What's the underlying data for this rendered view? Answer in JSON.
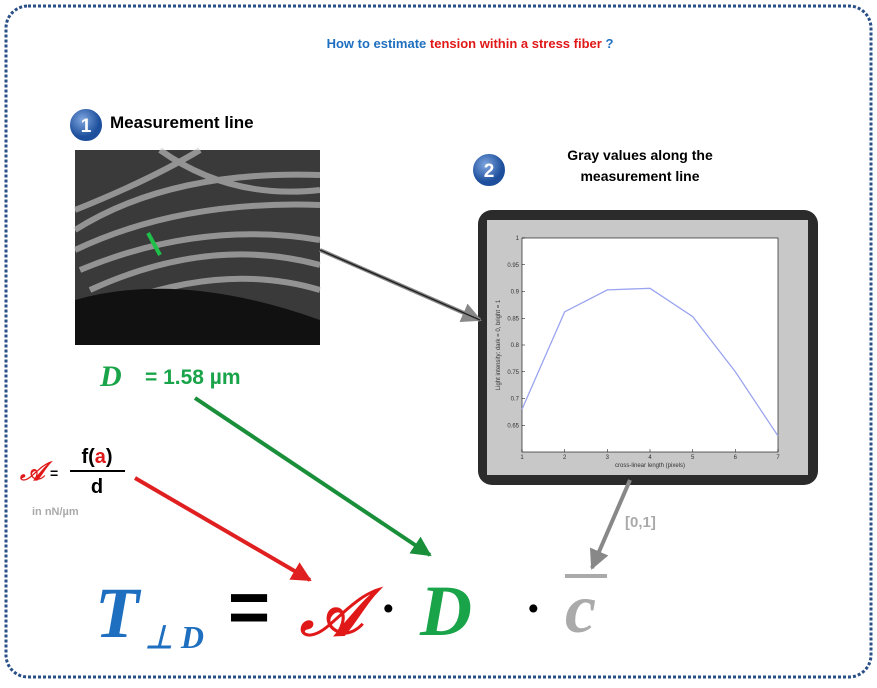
{
  "title": {
    "part1": "How to estimate",
    "part2": "tension within a stress fiber",
    "part3": "?"
  },
  "step1": {
    "number": "1",
    "label": "Measurement line"
  },
  "step2": {
    "number": "2",
    "label_line1": "Gray values along the",
    "label_line2": "measurement line"
  },
  "diameter": {
    "symbol": "D",
    "value": "= 1.58 µm"
  },
  "stiffness": {
    "symbol": "𝒜",
    "equals": "=",
    "num_open": "f(",
    "num_var": "a",
    "num_close": ")",
    "denominator": "d",
    "unit": "in nN/µm"
  },
  "range_label": "[0,1]",
  "formula": {
    "T": "T",
    "sub": "⊥ D",
    "equals": "=",
    "A": "𝒜",
    "dot1": "·",
    "D": "D",
    "dot2": "·",
    "C": "c"
  },
  "plot": {
    "xlabel": "cross-linear length (pixels)",
    "ylabel": "Light intensity: dark = 0, bright = 1",
    "x": [
      1,
      2,
      3,
      4,
      5,
      6,
      7
    ],
    "values": [
      0.68,
      0.862,
      0.903,
      0.906,
      0.853,
      0.75,
      0.63
    ],
    "xlim": [
      1,
      7
    ],
    "ylim": [
      0.6,
      1
    ],
    "xticks": [
      1,
      2,
      3,
      4,
      5,
      6,
      7
    ],
    "yticks": [
      0.65,
      0.7,
      0.75,
      0.8,
      0.85,
      0.9,
      0.95,
      1
    ],
    "color": "#9aa4f0"
  }
}
